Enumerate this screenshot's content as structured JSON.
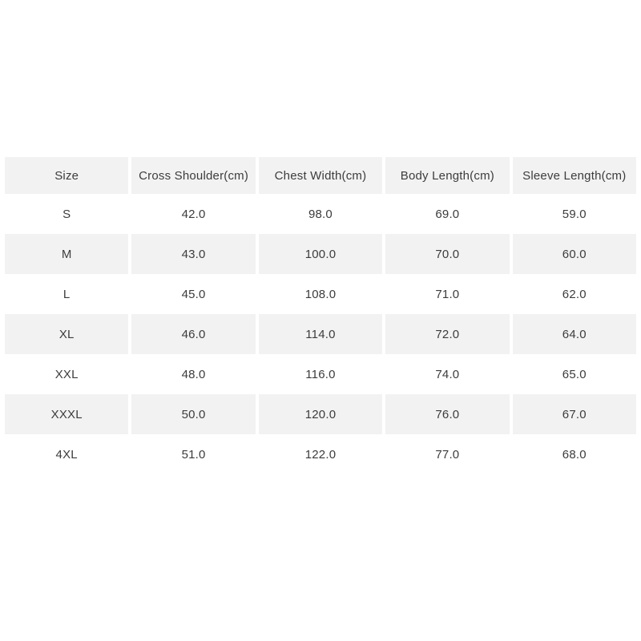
{
  "chart_data": {
    "type": "table",
    "columns": [
      "Size",
      "Cross Shoulder(cm)",
      "Chest Width(cm)",
      "Body Length(cm)",
      "Sleeve Length(cm)"
    ],
    "rows": [
      [
        "S",
        "42.0",
        "98.0",
        "69.0",
        "59.0"
      ],
      [
        "M",
        "43.0",
        "100.0",
        "70.0",
        "60.0"
      ],
      [
        "L",
        "45.0",
        "108.0",
        "71.0",
        "62.0"
      ],
      [
        "XL",
        "46.0",
        "114.0",
        "72.0",
        "64.0"
      ],
      [
        "XXL",
        "48.0",
        "116.0",
        "74.0",
        "65.0"
      ],
      [
        "XXXL",
        "50.0",
        "120.0",
        "76.0",
        "67.0"
      ],
      [
        "4XL",
        "51.0",
        "122.0",
        "77.0",
        "68.0"
      ]
    ],
    "layout": {
      "header_background": "#f2f2f2",
      "alt_row_background": "#f2f2f2",
      "row_background": "#ffffff",
      "text_color": "#3c3c3c",
      "page_background": "#ffffff",
      "grid": "off"
    }
  }
}
